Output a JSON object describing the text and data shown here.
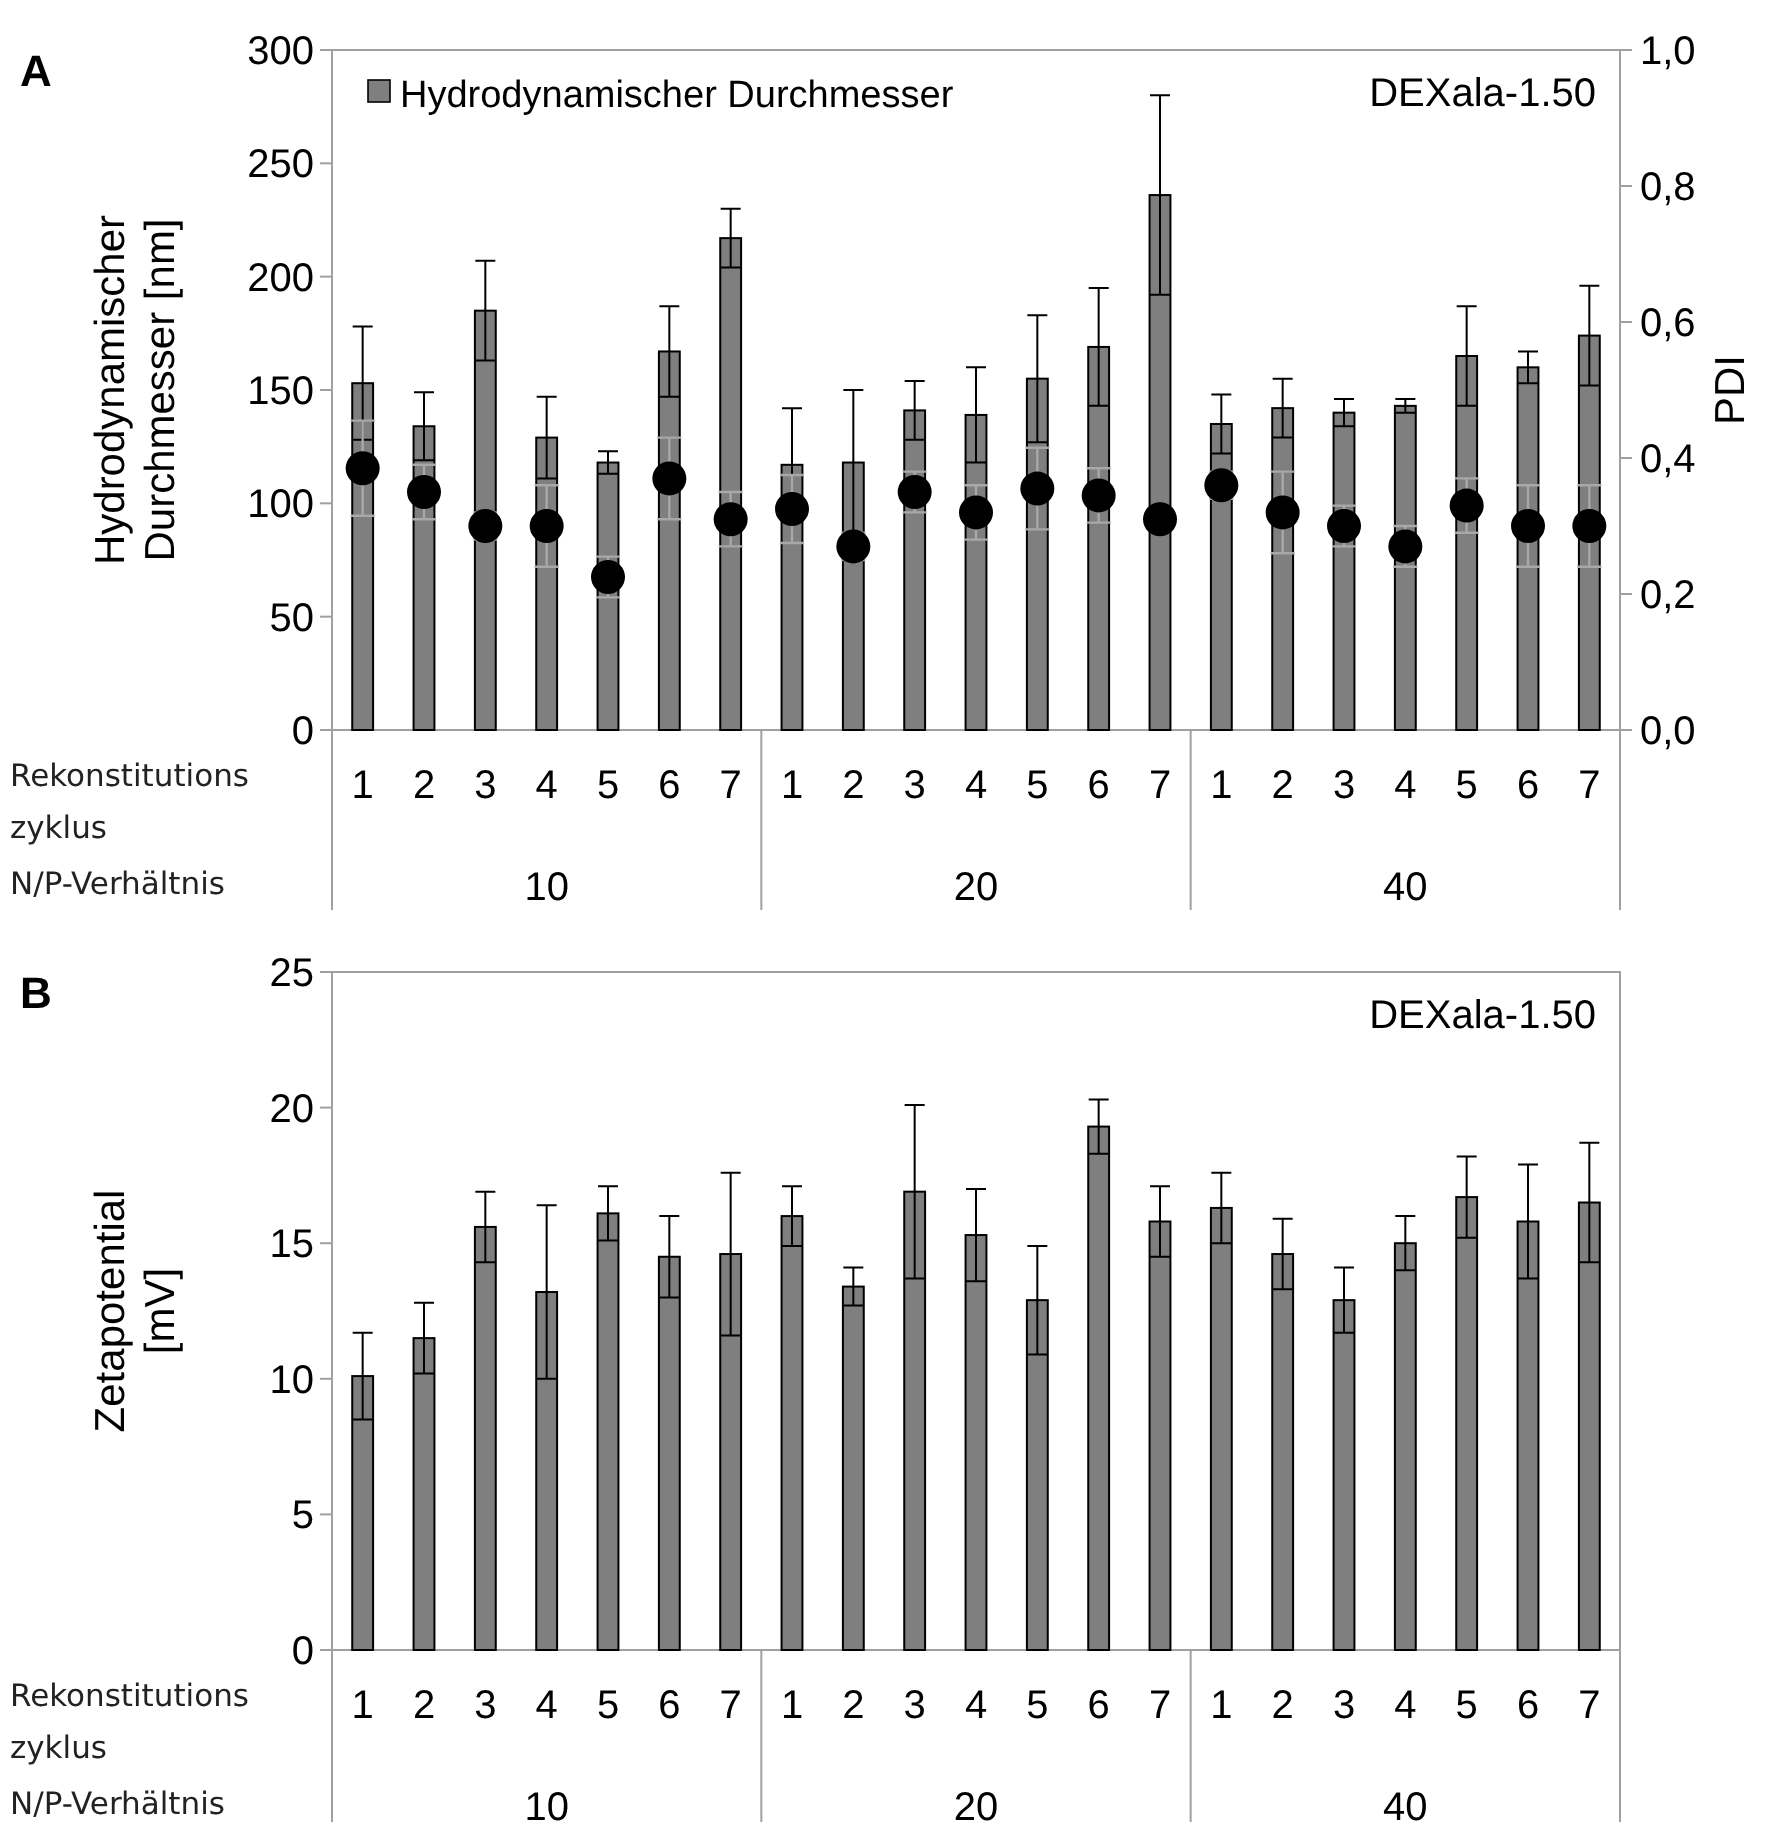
{
  "chart_data": [
    {
      "type": "bar",
      "title": "A",
      "ylabel": "Hydrodynamischer Durchmesser [nm]",
      "y2label": "PDI",
      "categories": [
        "1",
        "2",
        "3",
        "4",
        "5",
        "6",
        "7",
        "1",
        "2",
        "3",
        "4",
        "5",
        "6",
        "7",
        "1",
        "2",
        "3",
        "4",
        "5",
        "6",
        "7"
      ],
      "series": [
        {
          "name": "Hydrodynamischer Durchmesser",
          "color": "#7f7f7f",
          "values": [
            153,
            134,
            185,
            129,
            118,
            167,
            217,
            117,
            118,
            141,
            139,
            155,
            169,
            236,
            135,
            142,
            140,
            143,
            165,
            160,
            174
          ],
          "errors": [
            25,
            15,
            22,
            18,
            5,
            20,
            13,
            25,
            32,
            13,
            21,
            28,
            26,
            44,
            13,
            13,
            6,
            3,
            22,
            7,
            22
          ]
        },
        {
          "type": "scatter",
          "axis": "y2",
          "color": "#000000",
          "marker": "circle",
          "values": [
            0.385,
            0.35,
            0.3,
            0.3,
            0.225,
            0.37,
            0.31,
            0.325,
            0.27,
            0.35,
            0.32,
            0.355,
            0.345,
            0.31,
            0.36,
            0.32,
            0.3,
            0.27,
            0.33,
            0.3,
            0.3
          ],
          "errors": [
            0.07,
            0.04,
            0.02,
            0.06,
            0.03,
            0.06,
            0.04,
            0.05,
            0.02,
            0.03,
            0.04,
            0.06,
            0.04,
            0.01,
            0.02,
            0.06,
            0.03,
            0.03,
            0.04,
            0.06,
            0.06
          ]
        }
      ],
      "ylim": [
        0,
        300
      ],
      "yticks": [
        0,
        50,
        100,
        150,
        200,
        250,
        300
      ],
      "y2lim": [
        0,
        1
      ],
      "y2ticks": [
        {
          "value": 0,
          "label": "0,0"
        },
        {
          "value": 0.2,
          "label": "0,2"
        },
        {
          "value": 0.4,
          "label": "0,4"
        },
        {
          "value": 0.6,
          "label": "0,6"
        },
        {
          "value": 0.8,
          "label": "0,8"
        },
        {
          "value": 1,
          "label": "1,0"
        }
      ],
      "legend": "top left",
      "grid": false,
      "annotations": [
        "DEXala-1.50",
        "Rekonstitutions zyklus",
        "N/P-Verhältnis",
        "10",
        "20",
        "40"
      ]
    },
    {
      "type": "bar",
      "title": "B",
      "ylabel": "Zetapotential [mV]",
      "categories": [
        "1",
        "2",
        "3",
        "4",
        "5",
        "6",
        "7",
        "1",
        "2",
        "3",
        "4",
        "5",
        "6",
        "7",
        "1",
        "2",
        "3",
        "4",
        "5",
        "6",
        "7"
      ],
      "series": [
        {
          "color": "#7f7f7f",
          "values": [
            10.1,
            11.5,
            15.6,
            13.2,
            16.1,
            14.5,
            14.6,
            16.0,
            13.4,
            16.9,
            15.3,
            12.9,
            19.3,
            15.8,
            16.3,
            14.6,
            12.9,
            15.0,
            16.7,
            15.8,
            16.5
          ],
          "errors": [
            1.6,
            1.3,
            1.3,
            3.2,
            1.0,
            1.5,
            3.0,
            1.1,
            0.7,
            3.2,
            1.7,
            2.0,
            1.0,
            1.3,
            1.3,
            1.3,
            1.2,
            1.0,
            1.5,
            2.1,
            2.2
          ]
        }
      ],
      "ylim": [
        0,
        25
      ],
      "yticks": [
        0,
        5,
        10,
        15,
        20,
        25
      ],
      "grid": false,
      "annotations": [
        "DEXala-1.50",
        "Rekonstitutions zyklus",
        "N/P-Verhältnis",
        "10",
        "20",
        "40"
      ]
    }
  ]
}
